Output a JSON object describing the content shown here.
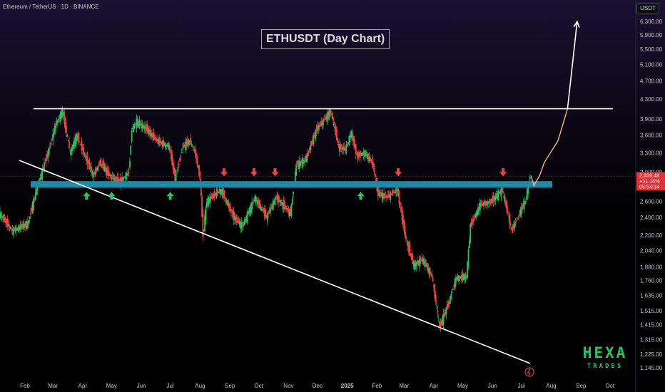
{
  "header": "Ethereum / TetherUS · 1D · BINANCE",
  "currency_tag": "USDT",
  "chart_title": "ETHUSDT (Day Chart)",
  "watermark": {
    "line1": "HEXA",
    "line2": "TRADES"
  },
  "price_label": {
    "price": "2,939.49",
    "change": "+31.18%",
    "countdown": "05:54:34"
  },
  "colors": {
    "background": "#000000",
    "background_top": "#1a1030",
    "up": "#22c55e",
    "down": "#ef4444",
    "support_zone": "#1f8aa6",
    "trendline": "#ffffff",
    "projection_fill": "#f2b48a",
    "watermark": "#22c55e",
    "price_tag": "#e0313a"
  },
  "chart_data": {
    "type": "candlestick",
    "title": "ETHUSDT (Day Chart)",
    "y_scale": "log",
    "ylim": [
      1080,
      6800
    ],
    "y_ticks": [
      {
        "value": 6300,
        "label": "6,300.00"
      },
      {
        "value": 5900,
        "label": "5,900.00"
      },
      {
        "value": 5500,
        "label": "5,500.00"
      },
      {
        "value": 5100,
        "label": "5,100.00"
      },
      {
        "value": 4700,
        "label": "4,700.00"
      },
      {
        "value": 4300,
        "label": "4,300.00"
      },
      {
        "value": 3900,
        "label": "3,900.00"
      },
      {
        "value": 3600,
        "label": "3,600.00"
      },
      {
        "value": 3300,
        "label": "3,300.00"
      },
      {
        "value": 3000,
        "label": "3,000.00"
      },
      {
        "value": 2600,
        "label": "2,600.00"
      },
      {
        "value": 2400,
        "label": "2,400.00"
      },
      {
        "value": 2200,
        "label": "2,200.00"
      },
      {
        "value": 2040,
        "label": "2,040.00"
      },
      {
        "value": 1880,
        "label": "1,880.00"
      },
      {
        "value": 1760,
        "label": "1,760.00"
      },
      {
        "value": 1635,
        "label": "1,635.00"
      },
      {
        "value": 1515,
        "label": "1,515.00"
      },
      {
        "value": 1415,
        "label": "1,415.00"
      },
      {
        "value": 1315,
        "label": "1,315.00"
      },
      {
        "value": 1225,
        "label": "1,225.00"
      },
      {
        "value": 1145,
        "label": "1,145.00"
      }
    ],
    "x_ticks": [
      {
        "date": "2024-02-01",
        "label": "Feb"
      },
      {
        "date": "2024-03-01",
        "label": "Mar"
      },
      {
        "date": "2024-04-01",
        "label": "Apr"
      },
      {
        "date": "2024-05-01",
        "label": "May"
      },
      {
        "date": "2024-06-01",
        "label": "Jun"
      },
      {
        "date": "2024-07-01",
        "label": "Jul"
      },
      {
        "date": "2024-08-01",
        "label": "Aug"
      },
      {
        "date": "2024-09-01",
        "label": "Sep"
      },
      {
        "date": "2024-10-01",
        "label": "Oct"
      },
      {
        "date": "2024-11-01",
        "label": "Nov"
      },
      {
        "date": "2024-12-01",
        "label": "Dec"
      },
      {
        "date": "2025-01-01",
        "label": "2025"
      },
      {
        "date": "2025-02-01",
        "label": "Feb"
      },
      {
        "date": "2025-03-01",
        "label": "Mar"
      },
      {
        "date": "2025-04-01",
        "label": "Apr"
      },
      {
        "date": "2025-05-01",
        "label": "May"
      },
      {
        "date": "2025-06-01",
        "label": "Jun"
      },
      {
        "date": "2025-07-01",
        "label": "Jul"
      },
      {
        "date": "2025-08-01",
        "label": "Aug"
      },
      {
        "date": "2025-09-01",
        "label": "Sep"
      },
      {
        "date": "2025-10-01",
        "label": "Oct"
      }
    ],
    "price_path": [
      [
        "2024-01-06",
        2450
      ],
      [
        "2024-01-20",
        2250
      ],
      [
        "2024-02-05",
        2330
      ],
      [
        "2024-02-15",
        2800
      ],
      [
        "2024-02-26",
        3300
      ],
      [
        "2024-03-05",
        3800
      ],
      [
        "2024-03-12",
        4050
      ],
      [
        "2024-03-20",
        3300
      ],
      [
        "2024-03-27",
        3600
      ],
      [
        "2024-04-03",
        3300
      ],
      [
        "2024-04-13",
        2950
      ],
      [
        "2024-04-20",
        3150
      ],
      [
        "2024-04-30",
        2950
      ],
      [
        "2024-05-10",
        2850
      ],
      [
        "2024-05-20",
        3000
      ],
      [
        "2024-05-23",
        3700
      ],
      [
        "2024-05-28",
        3850
      ],
      [
        "2024-06-08",
        3700
      ],
      [
        "2024-06-18",
        3500
      ],
      [
        "2024-07-01",
        3400
      ],
      [
        "2024-07-07",
        2900
      ],
      [
        "2024-07-15",
        3400
      ],
      [
        "2024-07-22",
        3500
      ],
      [
        "2024-07-28",
        3300
      ],
      [
        "2024-08-02",
        2900
      ],
      [
        "2024-08-05",
        2200
      ],
      [
        "2024-08-09",
        2600
      ],
      [
        "2024-08-24",
        2750
      ],
      [
        "2024-09-06",
        2400
      ],
      [
        "2024-09-15",
        2300
      ],
      [
        "2024-09-28",
        2650
      ],
      [
        "2024-10-10",
        2400
      ],
      [
        "2024-10-20",
        2650
      ],
      [
        "2024-11-04",
        2450
      ],
      [
        "2024-11-10",
        3100
      ],
      [
        "2024-11-20",
        3200
      ],
      [
        "2024-12-01",
        3700
      ],
      [
        "2024-12-16",
        4050
      ],
      [
        "2024-12-24",
        3400
      ],
      [
        "2024-12-31",
        3350
      ],
      [
        "2025-01-06",
        3650
      ],
      [
        "2025-01-12",
        3250
      ],
      [
        "2025-01-20",
        3300
      ],
      [
        "2025-01-28",
        3150
      ],
      [
        "2025-02-03",
        2700
      ],
      [
        "2025-02-12",
        2650
      ],
      [
        "2025-02-23",
        2750
      ],
      [
        "2025-03-04",
        2150
      ],
      [
        "2025-03-12",
        1900
      ],
      [
        "2025-03-21",
        1950
      ],
      [
        "2025-03-31",
        1800
      ],
      [
        "2025-04-08",
        1400
      ],
      [
        "2025-04-18",
        1590
      ],
      [
        "2025-04-25",
        1780
      ],
      [
        "2025-05-06",
        1800
      ],
      [
        "2025-05-10",
        2300
      ],
      [
        "2025-05-20",
        2550
      ],
      [
        "2025-06-01",
        2600
      ],
      [
        "2025-06-12",
        2750
      ],
      [
        "2025-06-22",
        2250
      ],
      [
        "2025-06-30",
        2450
      ],
      [
        "2025-07-06",
        2600
      ],
      [
        "2025-07-11",
        2950
      ]
    ],
    "zones": [
      {
        "label": "support",
        "from": 2780,
        "to": 2870
      }
    ],
    "trendlines": [
      {
        "name": "resistance",
        "points": [
          [
            "2024-02-10",
            4100
          ],
          [
            "2025-10-04",
            4100
          ]
        ]
      },
      {
        "name": "descending-support",
        "points": [
          [
            "2024-01-26",
            3180
          ],
          [
            "2025-07-10",
            1170
          ]
        ]
      }
    ],
    "projection": [
      [
        "2025-07-11",
        2950
      ],
      [
        "2025-07-14",
        2810
      ],
      [
        "2025-07-20",
        2950
      ],
      [
        "2025-07-25",
        3150
      ],
      [
        "2025-08-08",
        3500
      ],
      [
        "2025-08-18",
        4100
      ],
      [
        "2025-08-28",
        6300
      ]
    ],
    "markers_up": [
      "2024-04-05",
      "2024-05-01",
      "2024-07-01",
      "2025-01-15"
    ],
    "markers_down": [
      "2024-08-26",
      "2024-09-26",
      "2024-10-18",
      "2025-02-23",
      "2025-06-12"
    ],
    "current_price": 2939.49
  }
}
